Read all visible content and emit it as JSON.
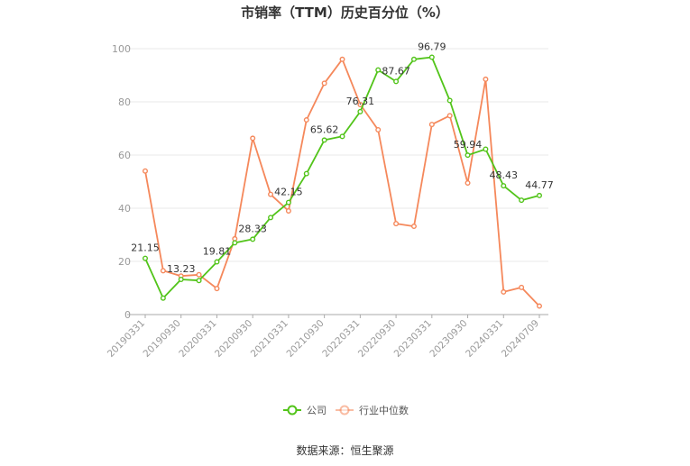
{
  "chart_data": {
    "type": "line",
    "title": "市销率（TTM）历史百分位（%）",
    "xlabel": "",
    "ylabel": "",
    "ylim": [
      0,
      100
    ],
    "yticks": [
      0,
      20,
      40,
      60,
      80,
      100
    ],
    "x": [
      "20190331",
      "20190630",
      "20190930",
      "20191231",
      "20200331",
      "20200630",
      "20200930",
      "20201231",
      "20210331",
      "20210630",
      "20210930",
      "20211231",
      "20220331",
      "20220630",
      "20220930",
      "20221231",
      "20230331",
      "20230630",
      "20230930",
      "20231231",
      "20240331",
      "20240630",
      "20240709"
    ],
    "x_tick_labels": [
      "20190331",
      "20190930",
      "20200331",
      "20200930",
      "20210331",
      "20210930",
      "20220331",
      "20220930",
      "20230331",
      "20230930",
      "20240331",
      "20240709"
    ],
    "series": [
      {
        "name": "公司",
        "color": "#52c41a",
        "values": [
          21.15,
          6.2,
          13.23,
          12.8,
          19.81,
          27.0,
          28.33,
          36.5,
          42.15,
          53.0,
          65.62,
          67.0,
          76.31,
          92.0,
          87.67,
          96.0,
          96.79,
          80.5,
          59.94,
          62.2,
          48.43,
          43.0,
          44.77
        ],
        "labels": {
          "0": "21.15",
          "2": "13.23",
          "4": "19.81",
          "6": "28.33",
          "8": "42.15",
          "10": "65.62",
          "12": "76.31",
          "14": "87.67",
          "16": "96.79",
          "18": "59.94",
          "20": "48.43",
          "22": "44.77"
        }
      },
      {
        "name": "行业中位数",
        "color": "#f5885b",
        "values": [
          54.0,
          16.5,
          14.5,
          15.0,
          9.8,
          28.5,
          66.3,
          45.2,
          39.0,
          73.2,
          87.0,
          96.0,
          79.0,
          69.5,
          34.2,
          33.2,
          71.5,
          74.8,
          49.5,
          88.5,
          8.5,
          10.2,
          3.2
        ]
      }
    ],
    "grid": true,
    "legend_position": "bottom"
  },
  "source": "数据来源：恒生聚源"
}
